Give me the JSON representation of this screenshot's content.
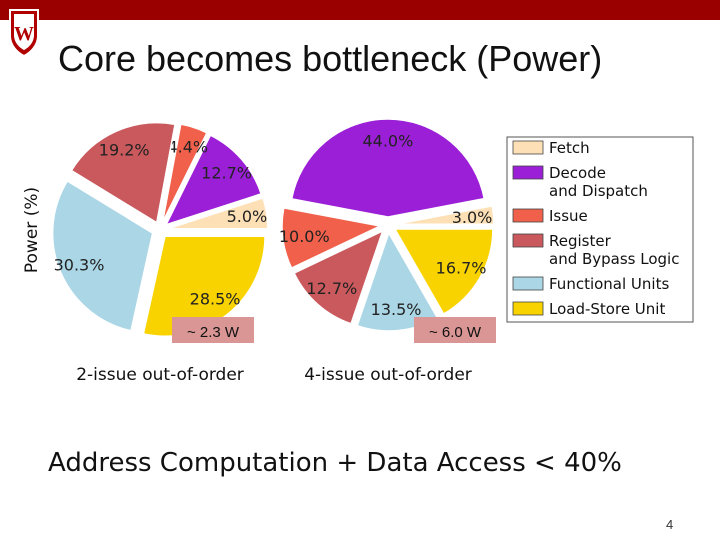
{
  "slide": {
    "title": "Core becomes bottleneck (Power)",
    "footer": "Address Computation + Data Access < 40%",
    "page_number": "4",
    "logo_letter": "W",
    "colors": {
      "topbar": "#9b0000",
      "annotation_box": "#d99694"
    }
  },
  "chart_data": {
    "type": "pie",
    "ylabel": "Power (%)",
    "legend_position": "right",
    "categories": [
      "Fetch",
      "Decode and Dispatch",
      "Issue",
      "Register and Bypass Logic",
      "Functional Units",
      "Load-Store Unit"
    ],
    "legend_labels": [
      [
        "Fetch"
      ],
      [
        "Decode",
        "and Dispatch"
      ],
      [
        "Issue"
      ],
      [
        "Register",
        "and Bypass Logic"
      ],
      [
        "Functional Units"
      ],
      [
        "Load-Store Unit"
      ]
    ],
    "colors": [
      "#fde0b5",
      "#9b1fd6",
      "#f0604a",
      "#c9595c",
      "#aad6e6",
      "#f9d300"
    ],
    "pies": [
      {
        "label": "2-issue out-of-order",
        "annotation": "~ 2.3 W",
        "values": [
          5.0,
          12.7,
          4.4,
          19.2,
          30.3,
          28.5
        ],
        "value_labels": [
          "5.0%",
          "12.7%",
          "4.4%",
          "19.2%",
          "30.3%",
          "28.5%"
        ]
      },
      {
        "label": "4-issue out-of-order",
        "annotation": "~ 6.0 W",
        "values": [
          3.0,
          44.0,
          10.0,
          12.7,
          13.5,
          16.7
        ],
        "value_labels": [
          "3.0%",
          "44.0%",
          "10.0%",
          "12.7%",
          "13.5%",
          "16.7%"
        ]
      }
    ]
  }
}
